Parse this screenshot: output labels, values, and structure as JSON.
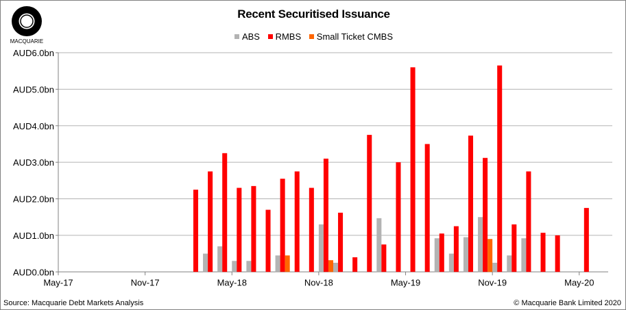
{
  "logo_text": "MACQUARIE",
  "source": "Source: Macquarie Debt Markets Analysis",
  "copyright": "© Macquarie Bank Limited 2020",
  "chart_data": {
    "type": "bar",
    "title": "Recent Securitised Issuance",
    "xlabel": "",
    "ylabel": "",
    "ylim": [
      0,
      6
    ],
    "yticks": [
      "AUD0.0bn",
      "AUD1.0bn",
      "AUD2.0bn",
      "AUD3.0bn",
      "AUD4.0bn",
      "AUD5.0bn",
      "AUD6.0bn"
    ],
    "xtick_labels": [
      "May-17",
      "Nov-17",
      "May-18",
      "Nov-18",
      "May-19",
      "Nov-19",
      "May-20"
    ],
    "grid": true,
    "legend_position": "top",
    "categories": [
      "May-17",
      "Jun-17",
      "Jul-17",
      "Aug-17",
      "Sep-17",
      "Oct-17",
      "Nov-17",
      "Dec-17",
      "Jan-18",
      "Feb-18",
      "Mar-18",
      "Apr-18",
      "May-18",
      "Jun-18",
      "Jul-18",
      "Aug-18",
      "Sep-18",
      "Oct-18",
      "Nov-18",
      "Dec-18",
      "Jan-19",
      "Feb-19",
      "Mar-19",
      "Apr-19",
      "May-19",
      "Jun-19",
      "Jul-19",
      "Aug-19",
      "Sep-19",
      "Oct-19",
      "Nov-19",
      "Dec-19",
      "Jan-20",
      "Feb-20",
      "Mar-20",
      "Apr-20",
      "May-20",
      "Jun-20"
    ],
    "series": [
      {
        "name": "ABS",
        "color": "#b3b3b3",
        "values": [
          0,
          0,
          0,
          0,
          0,
          0,
          0,
          0,
          0,
          0,
          0.5,
          0.7,
          0.3,
          0.3,
          0,
          0.45,
          0,
          0,
          1.3,
          0.25,
          0,
          0,
          1.47,
          0,
          0,
          0,
          0.92,
          0.5,
          0.95,
          1.5,
          0.25,
          0.45,
          0.92,
          0,
          0,
          0,
          0,
          0
        ]
      },
      {
        "name": "RMBS",
        "color": "#ff0000",
        "values": [
          0,
          0,
          0,
          0,
          0,
          0,
          0,
          0,
          0,
          2.25,
          2.75,
          3.25,
          2.3,
          2.35,
          1.7,
          2.55,
          2.75,
          2.3,
          3.1,
          1.62,
          0.4,
          3.75,
          0.75,
          3.0,
          5.6,
          3.5,
          1.05,
          1.25,
          3.73,
          3.12,
          5.65,
          1.3,
          2.75,
          1.07,
          1.0,
          0,
          1.75,
          0
        ]
      },
      {
        "name": "Small Ticket CMBS",
        "color": "#ff6600",
        "values": [
          0,
          0,
          0,
          0,
          0,
          0,
          0,
          0,
          0,
          0,
          0,
          0,
          0,
          0,
          0,
          0.45,
          0,
          0,
          0.32,
          0,
          0,
          0,
          0,
          0,
          0,
          0,
          0,
          0,
          0,
          0.9,
          0,
          0,
          0,
          0,
          0,
          0,
          0,
          0
        ]
      }
    ]
  }
}
